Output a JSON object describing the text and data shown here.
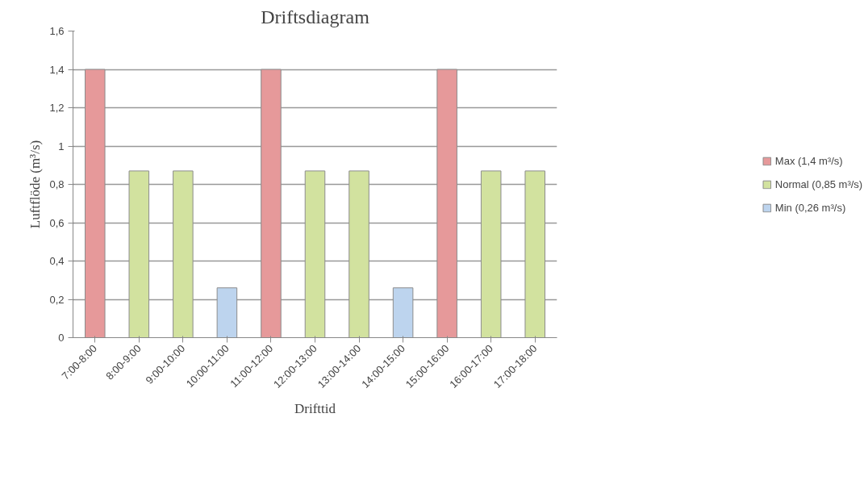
{
  "chart_data": {
    "type": "bar",
    "title": "Driftsdiagram",
    "xlabel": "Drifttid",
    "ylabel": "Luftflöde (m³/s)",
    "categories": [
      "7:00-8:00",
      "8:00-9:00",
      "9:00-10:00",
      "10:00-11:00",
      "11:00-12:00",
      "12:00-13:00",
      "13:00-14:00",
      "14:00-15:00",
      "15:00-16:00",
      "16:00-17:00",
      "17:00-18:00"
    ],
    "series": [
      {
        "name": "Max (1,4 m³/s)",
        "color": "#e6999a",
        "values": [
          1.4,
          null,
          null,
          null,
          1.4,
          null,
          null,
          null,
          1.4,
          null,
          null
        ]
      },
      {
        "name": "Normal (0,85 m³/s)",
        "color": "#d2e29f",
        "values": [
          null,
          0.87,
          0.87,
          null,
          null,
          0.87,
          0.87,
          null,
          null,
          0.87,
          0.87
        ]
      },
      {
        "name": "Min (0,26 m³/s)",
        "color": "#bdd4ee",
        "values": [
          null,
          null,
          null,
          0.26,
          null,
          null,
          null,
          0.26,
          null,
          null,
          null
        ]
      }
    ],
    "ylim": [
      0,
      1.6
    ],
    "yticks": [
      0,
      {
        "value": 0.2,
        "label": "0,2"
      },
      {
        "value": 0.4,
        "label": "0,4"
      },
      {
        "value": 0.6,
        "label": "0,6"
      },
      {
        "value": 0.8,
        "label": "0,8"
      },
      1,
      {
        "value": 1.2,
        "label": "1,2"
      },
      {
        "value": 1.4,
        "label": "1,4"
      },
      {
        "value": 1.6,
        "label": "1,6"
      }
    ],
    "grid": "y",
    "legend": "right"
  }
}
